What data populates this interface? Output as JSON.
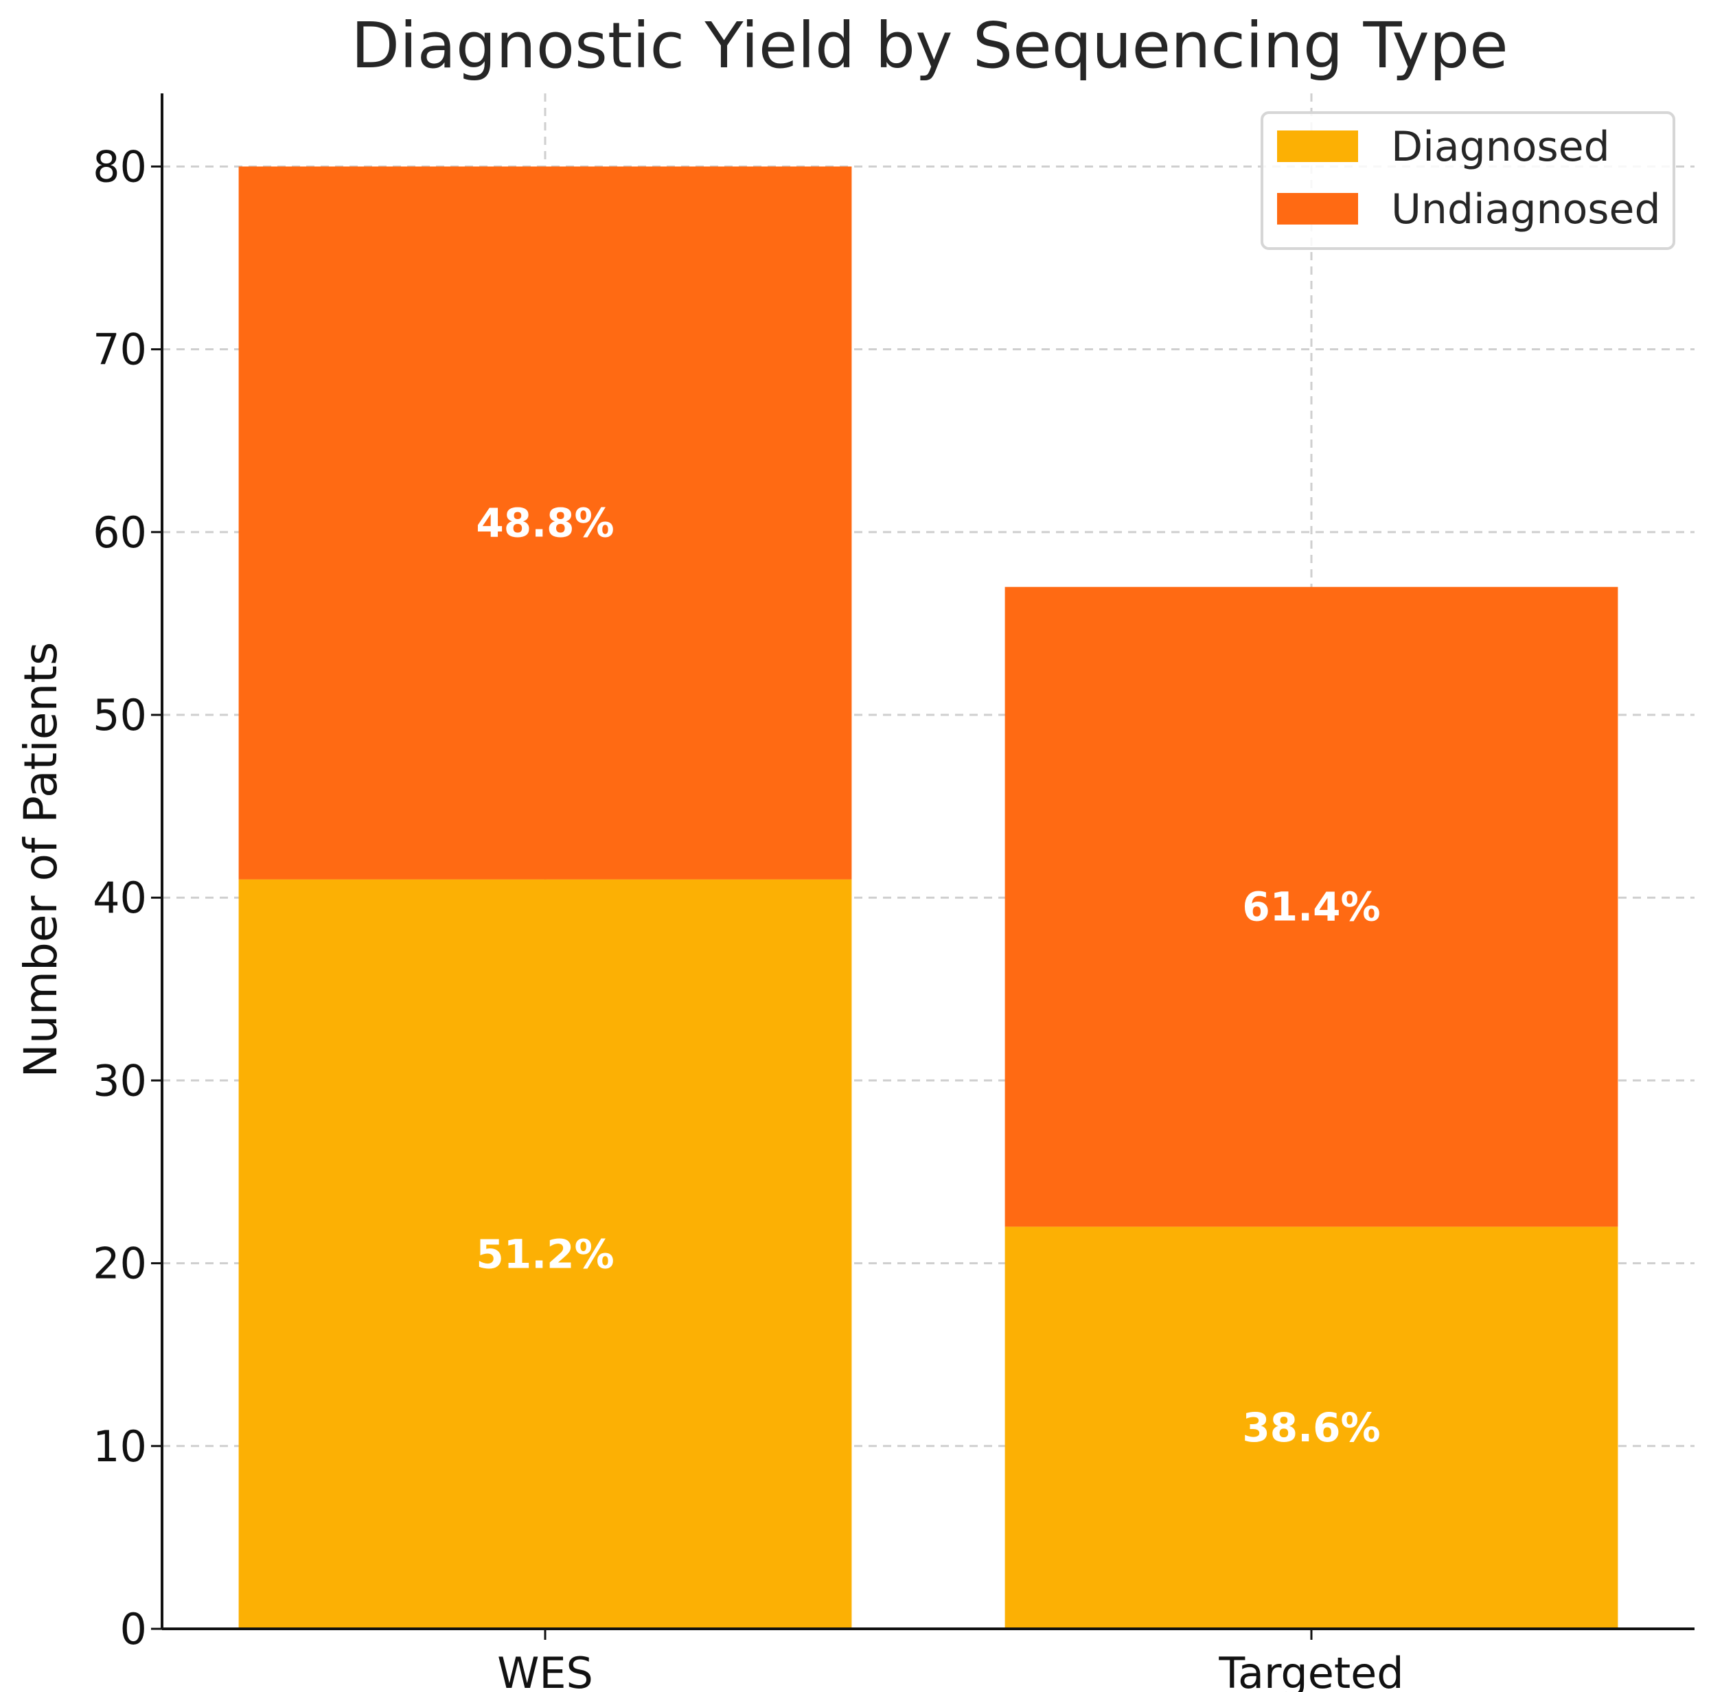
{
  "chart_data": {
    "type": "bar",
    "stacked": true,
    "title": "Diagnostic Yield by Sequencing Type",
    "xlabel": "",
    "ylabel": "Number of Patients",
    "categories": [
      "WES",
      "Targeted"
    ],
    "series": [
      {
        "name": "Diagnosed",
        "values": [
          41,
          22
        ],
        "color": "#FCB004",
        "labels": [
          "51.2%",
          "38.6%"
        ]
      },
      {
        "name": "Undiagnosed",
        "values": [
          39,
          35
        ],
        "color": "#FF6A13",
        "labels": [
          "48.8%",
          "61.4%"
        ]
      }
    ],
    "ylim": [
      0,
      84
    ],
    "yticks": [
      0,
      10,
      20,
      30,
      40,
      50,
      60,
      70,
      80
    ],
    "grid": true,
    "legend_position": "top-right"
  }
}
